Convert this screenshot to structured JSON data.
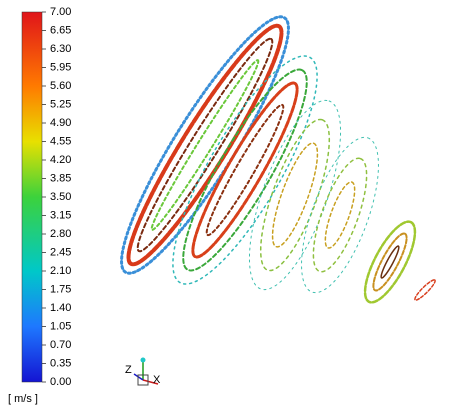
{
  "colorbar": {
    "min": 0,
    "max": 7,
    "unit": "[ m/s ]",
    "ticks": [
      {
        "value": 7,
        "label": "7.00"
      },
      {
        "value": 6.65,
        "label": "6.65"
      },
      {
        "value": 6.3,
        "label": "6.30"
      },
      {
        "value": 5.95,
        "label": "5.95"
      },
      {
        "value": 5.6,
        "label": "5.60"
      },
      {
        "value": 5.25,
        "label": "5.25"
      },
      {
        "value": 4.9,
        "label": "4.90"
      },
      {
        "value": 4.55,
        "label": "4.55"
      },
      {
        "value": 4.2,
        "label": "4.20"
      },
      {
        "value": 3.85,
        "label": "3.85"
      },
      {
        "value": 3.5,
        "label": "3.50"
      },
      {
        "value": 3.15,
        "label": "3.15"
      },
      {
        "value": 2.8,
        "label": "2.80"
      },
      {
        "value": 2.45,
        "label": "2.45"
      },
      {
        "value": 2.1,
        "label": "2.10"
      },
      {
        "value": 1.75,
        "label": "1.75"
      },
      {
        "value": 1.4,
        "label": "1.40"
      },
      {
        "value": 1.05,
        "label": "1.05"
      },
      {
        "value": 0.7,
        "label": "0.70"
      },
      {
        "value": 0.35,
        "label": "0.35"
      },
      {
        "value": 0,
        "label": "0.00"
      }
    ]
  },
  "triad": {
    "z_label": "Z",
    "x_label": "X"
  }
}
